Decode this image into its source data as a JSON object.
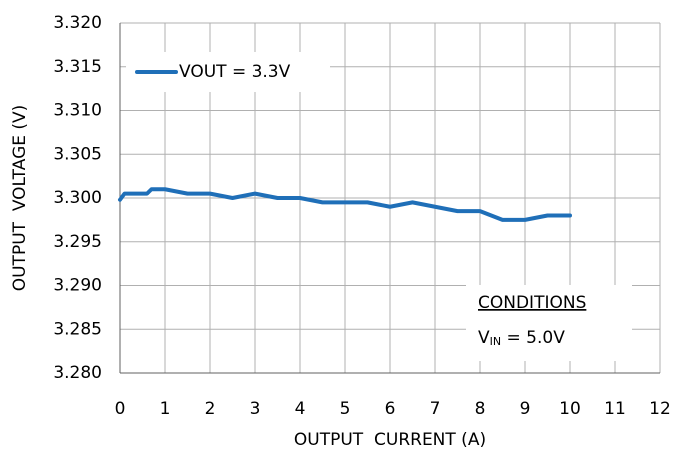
{
  "chart_data": {
    "type": "line",
    "xlabel": "OUTPUT  CURRENT (A)",
    "ylabel": "OUTPUT  VOLTAGE (V)",
    "series": [
      {
        "name": "VOUT = 3.3V",
        "color": "#1f6fb8",
        "x": [
          0,
          0.1,
          0.3,
          0.6,
          0.7,
          1,
          1.5,
          2,
          2.5,
          3,
          3.5,
          4,
          4.5,
          5,
          5.5,
          6,
          6.5,
          7,
          7.5,
          8,
          8.5,
          9,
          9.5,
          10
        ],
        "values": [
          3.2998,
          3.3005,
          3.3005,
          3.3005,
          3.301,
          3.301,
          3.3005,
          3.3005,
          3.3,
          3.3005,
          3.3,
          3.3,
          3.2995,
          3.2995,
          3.2995,
          3.299,
          3.2995,
          3.299,
          3.2985,
          3.2985,
          3.2975,
          3.2975,
          3.298,
          3.298
        ]
      }
    ],
    "xlim": [
      0,
      12
    ],
    "xticks": [
      0,
      1,
      2,
      3,
      4,
      5,
      6,
      7,
      8,
      9,
      10,
      11,
      12
    ],
    "ylim": [
      3.28,
      3.32
    ],
    "yticks": [
      {
        "value": 3.28,
        "label": "3.280"
      },
      {
        "value": 3.285,
        "label": "3.285"
      },
      {
        "value": 3.29,
        "label": "3.290"
      },
      {
        "value": 3.295,
        "label": "3.295"
      },
      {
        "value": 3.3,
        "label": "3.300"
      },
      {
        "value": 3.305,
        "label": "3.305"
      },
      {
        "value": 3.31,
        "label": "3.310"
      },
      {
        "value": 3.315,
        "label": "3.315"
      },
      {
        "value": 3.32,
        "label": "3.320"
      }
    ],
    "grid": true,
    "legend": "upper left",
    "conditions": {
      "title": "CONDITIONS",
      "symbol": "V",
      "subscript": "IN",
      "value": " = 5.0V"
    }
  }
}
